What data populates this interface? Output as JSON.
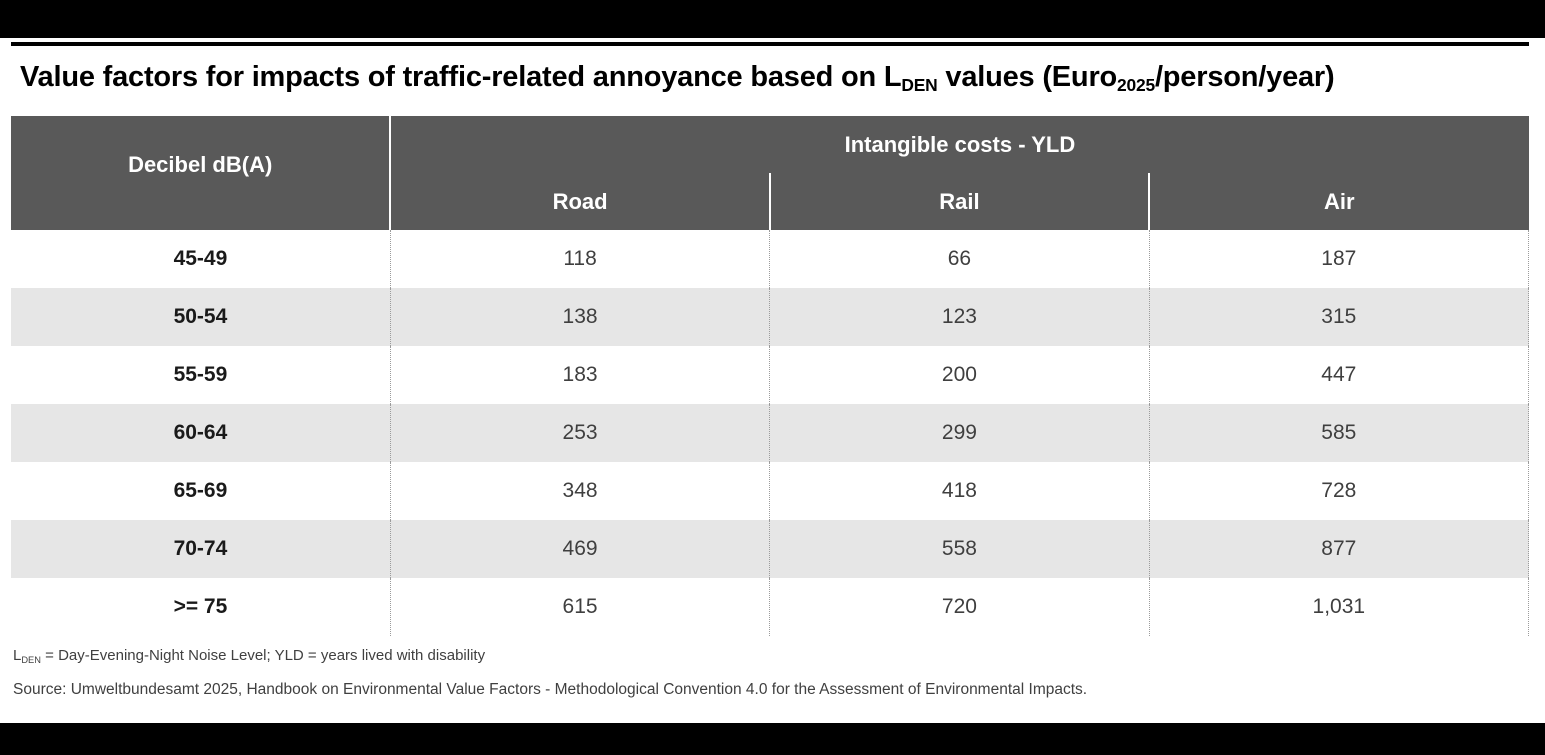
{
  "page": {
    "title": {
      "prefix": "Value factors for impacts of traffic-related annoyance based on L",
      "sub_den": "DEN",
      "mid": " values (Euro",
      "sub_year": "2025",
      "suffix": "/person/year)"
    }
  },
  "table": {
    "group_header": "Intangible costs - YLD",
    "row_header": "Decibel dB(A)",
    "columns": {
      "road": "Road",
      "rail": "Rail",
      "air": "Air"
    },
    "rows": [
      {
        "band": "45-49",
        "road": "118",
        "rail": "66",
        "air": "187"
      },
      {
        "band": "50-54",
        "road": "138",
        "rail": "123",
        "air": "315"
      },
      {
        "band": "55-59",
        "road": "183",
        "rail": "200",
        "air": "447"
      },
      {
        "band": "60-64",
        "road": "253",
        "rail": "299",
        "air": "585"
      },
      {
        "band": "65-69",
        "road": "348",
        "rail": "418",
        "air": "728"
      },
      {
        "band": "70-74",
        "road": "469",
        "rail": "558",
        "air": "877"
      },
      {
        "band": ">= 75",
        "road": "615",
        "rail": "720",
        "air": "1,031"
      }
    ]
  },
  "footnotes": {
    "abbrev_prefix": "L",
    "abbrev_sub": "DEN",
    "abbrev_text": " = Day-Evening-Night Noise Level; YLD = years lived with disability",
    "source": "Source: Umweltbundesamt 2025, Handbook on Environmental Value Factors - Methodological Convention 4.0 for the Assessment of Environmental Impacts."
  },
  "colors": {
    "header_bg": "#595959",
    "header_text": "#ffffff",
    "row_alt_bg": "#e6e6e6",
    "body_text": "#3f3f3f",
    "frame_bg": "#000000",
    "title_rule": "#000000",
    "dotted_divider": "#9b9b9b"
  }
}
